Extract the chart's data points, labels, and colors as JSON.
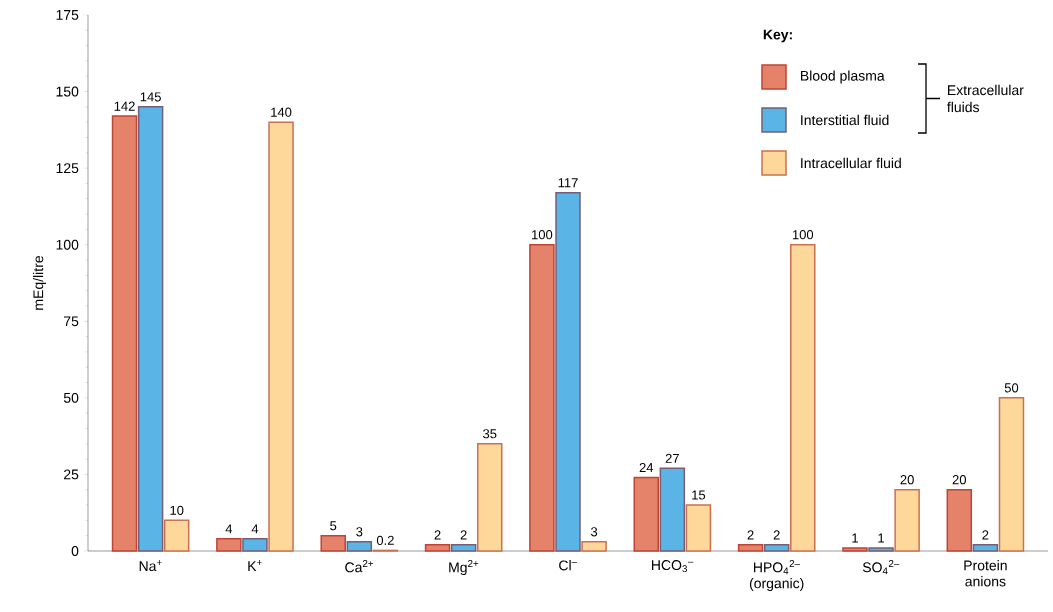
{
  "chart_data": {
    "type": "bar",
    "categories": [
      "Na$^{+}$",
      "K$^{+}$",
      "Ca$^{2+}$",
      "Mg$^{2+}$",
      "Cl$^{–}$",
      "HCO$_{3}$$^{–}$",
      "HPO$_{4}$$^{2–}$ (organic)",
      "SO$_{4}$$^{2–}$",
      "Protein anions"
    ],
    "series": [
      {
        "name": "Blood plasma",
        "color": "#e4826a",
        "values": [
          142,
          4,
          5,
          2,
          100,
          24,
          2,
          1,
          20
        ]
      },
      {
        "name": "Interstitial fluid",
        "color": "#5ab4e5",
        "values": [
          145,
          4,
          3,
          2,
          117,
          27,
          2,
          1,
          2
        ]
      },
      {
        "name": "Intracellular fluid",
        "color": "#fdd89a",
        "values": [
          10,
          140,
          0.2,
          35,
          3,
          15,
          100,
          20,
          50
        ]
      }
    ],
    "ylabel": "mEq/litre",
    "legend_title": "Key:",
    "legend": "top right",
    "annotations": [
      "Extracellular fluids"
    ],
    "ylim": [
      0,
      175
    ],
    "yticks": [
      0,
      25,
      50,
      75,
      100,
      125,
      150,
      175
    ],
    "data_labels": true,
    "grid": false
  }
}
